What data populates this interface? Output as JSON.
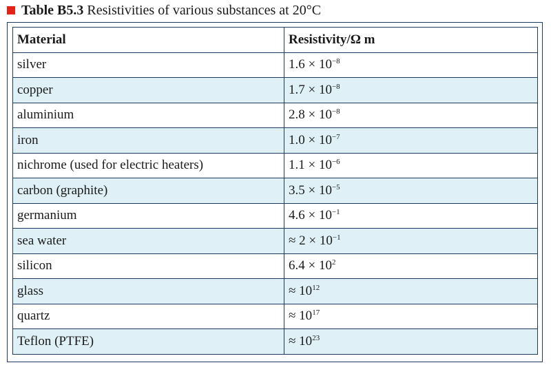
{
  "caption": {
    "label": "Table B5.3",
    "text": "Resistivities of various substances at 20°C"
  },
  "table": {
    "headers": [
      "Material",
      "Resistivity/Ω m"
    ],
    "rows": [
      {
        "material": "silver",
        "prefix": "1.6 × 10",
        "exp": "−8"
      },
      {
        "material": "copper",
        "prefix": "1.7 × 10",
        "exp": "−8"
      },
      {
        "material": "aluminium",
        "prefix": "2.8 × 10",
        "exp": "−8"
      },
      {
        "material": "iron",
        "prefix": "1.0 × 10",
        "exp": "−7"
      },
      {
        "material": "nichrome (used for electric heaters)",
        "prefix": "1.1 × 10",
        "exp": "−6"
      },
      {
        "material": "carbon (graphite)",
        "prefix": "3.5 × 10",
        "exp": "−5"
      },
      {
        "material": "germanium",
        "prefix": "4.6 × 10",
        "exp": "−1"
      },
      {
        "material": "sea water",
        "prefix": "≈ 2 × 10",
        "exp": "−1"
      },
      {
        "material": "silicon",
        "prefix": "6.4 × 10",
        "exp": "2"
      },
      {
        "material": "glass",
        "prefix": "≈ 10",
        "exp": "12"
      },
      {
        "material": "quartz",
        "prefix": "≈ 10",
        "exp": "17"
      },
      {
        "material": "Teflon (PTFE)",
        "prefix": "≈ 10",
        "exp": "23"
      }
    ]
  },
  "colors": {
    "marker": "#e2231a",
    "border": "#1b3a5e",
    "stripe": "#dff1f7"
  }
}
